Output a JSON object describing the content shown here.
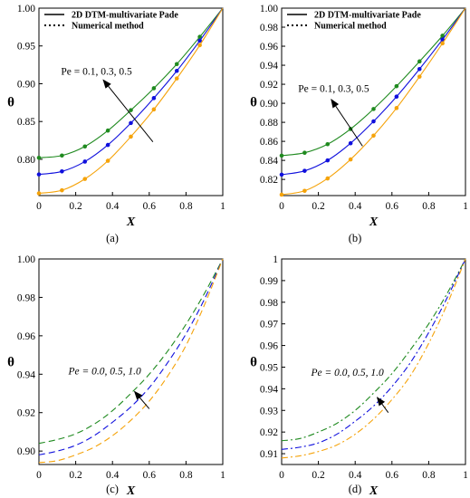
{
  "figure": {
    "legend": [
      "2D DTM-multivariate Pade",
      "Numerical method"
    ],
    "colors": {
      "green": "#1f8a1f",
      "blue": "#1010dd",
      "orange": "#f5a30a"
    }
  },
  "chart_data": [
    {
      "type": "line",
      "caption": "(a)",
      "xlabel": "X",
      "ylabel": "θ",
      "xlim": [
        0,
        1
      ],
      "ylim": [
        0.752,
        1.0
      ],
      "xticks": [
        "0",
        "0.2",
        "0.4",
        "0.6",
        "0.8",
        "1"
      ],
      "yticks": [
        {
          "v": 0.8,
          "label": "0.80"
        },
        {
          "v": 0.85,
          "label": "0.85"
        },
        {
          "v": 0.9,
          "label": "0.90"
        },
        {
          "v": 0.95,
          "label": "0.95"
        },
        {
          "v": 1.0,
          "label": "1.00"
        }
      ],
      "line_style": "solid-with-markers",
      "legend": true,
      "annotation": "Pe = 0.1, 0.3, 0.5",
      "annotation_italic": false,
      "arrow": {
        "from": [
          0.62,
          0.823
        ],
        "to": [
          0.35,
          0.905
        ]
      },
      "label_pos": [
        0.12,
        0.912
      ],
      "series": [
        {
          "color": "green",
          "x": [
            0,
            0.125,
            0.25,
            0.375,
            0.5,
            0.625,
            0.75,
            0.875,
            1
          ],
          "y": [
            0.802,
            0.805,
            0.817,
            0.838,
            0.865,
            0.894,
            0.926,
            0.962,
            1.0
          ]
        },
        {
          "color": "blue",
          "x": [
            0,
            0.125,
            0.25,
            0.375,
            0.5,
            0.625,
            0.75,
            0.875,
            1
          ],
          "y": [
            0.78,
            0.784,
            0.797,
            0.819,
            0.848,
            0.881,
            0.917,
            0.957,
            1.0
          ]
        },
        {
          "color": "orange",
          "x": [
            0,
            0.125,
            0.25,
            0.375,
            0.5,
            0.625,
            0.75,
            0.875,
            1
          ],
          "y": [
            0.755,
            0.759,
            0.774,
            0.798,
            0.83,
            0.866,
            0.907,
            0.951,
            1.0
          ]
        }
      ]
    },
    {
      "type": "line",
      "caption": "(b)",
      "xlabel": "X",
      "ylabel": "θ",
      "xlim": [
        0,
        1
      ],
      "ylim": [
        0.803,
        1.0
      ],
      "xticks": [
        "0",
        "0.2",
        "0.4",
        "0.6",
        "0.8",
        "1"
      ],
      "yticks": [
        {
          "v": 0.82,
          "label": "0.82"
        },
        {
          "v": 0.84,
          "label": "0.84"
        },
        {
          "v": 0.86,
          "label": "0.86"
        },
        {
          "v": 0.88,
          "label": "0.88"
        },
        {
          "v": 0.9,
          "label": "0.90"
        },
        {
          "v": 0.92,
          "label": "0.92"
        },
        {
          "v": 0.94,
          "label": "0.94"
        },
        {
          "v": 0.96,
          "label": "0.96"
        },
        {
          "v": 0.98,
          "label": "0.98"
        },
        {
          "v": 1.0,
          "label": "1.00"
        }
      ],
      "line_style": "solid-with-markers",
      "legend": true,
      "annotation": "Pe = 0.1, 0.3, 0.5",
      "annotation_italic": false,
      "arrow": {
        "from": [
          0.44,
          0.855
        ],
        "to": [
          0.27,
          0.904
        ]
      },
      "label_pos": [
        0.09,
        0.912
      ],
      "series": [
        {
          "color": "green",
          "x": [
            0,
            0.125,
            0.25,
            0.375,
            0.5,
            0.625,
            0.75,
            0.875,
            1
          ],
          "y": [
            0.845,
            0.848,
            0.857,
            0.873,
            0.894,
            0.918,
            0.944,
            0.971,
            1.0
          ]
        },
        {
          "color": "blue",
          "x": [
            0,
            0.125,
            0.25,
            0.375,
            0.5,
            0.625,
            0.75,
            0.875,
            1
          ],
          "y": [
            0.825,
            0.829,
            0.84,
            0.858,
            0.881,
            0.907,
            0.936,
            0.967,
            1.0
          ]
        },
        {
          "color": "orange",
          "x": [
            0,
            0.125,
            0.25,
            0.375,
            0.5,
            0.625,
            0.75,
            0.875,
            1
          ],
          "y": [
            0.804,
            0.808,
            0.821,
            0.841,
            0.866,
            0.895,
            0.928,
            0.963,
            1.0
          ]
        }
      ]
    },
    {
      "type": "line",
      "caption": "(c)",
      "xlabel": "X",
      "ylabel": "θ",
      "xlim": [
        0,
        1
      ],
      "ylim": [
        0.893,
        1.0
      ],
      "xticks": [
        "0",
        "0.2",
        "0.4",
        "0.6",
        "0.8",
        "1"
      ],
      "yticks": [
        {
          "v": 0.9,
          "label": "0.90"
        },
        {
          "v": 0.92,
          "label": "0.92"
        },
        {
          "v": 0.94,
          "label": "0.94"
        },
        {
          "v": 0.96,
          "label": "0.96"
        },
        {
          "v": 0.98,
          "label": "0.98"
        },
        {
          "v": 1.0,
          "label": "1.00"
        }
      ],
      "line_style": "dashed",
      "legend": false,
      "annotation": "Pe = 0.0, 0.5, 1.0",
      "annotation_italic": true,
      "arrow": {
        "from": [
          0.6,
          0.922
        ],
        "to": [
          0.52,
          0.931
        ]
      },
      "label_pos": [
        0.16,
        0.94
      ],
      "series": [
        {
          "color": "green",
          "x": [
            0,
            0.1,
            0.2,
            0.3,
            0.4,
            0.5,
            0.6,
            0.7,
            0.8,
            0.9,
            1
          ],
          "y": [
            0.904,
            0.906,
            0.909,
            0.914,
            0.921,
            0.93,
            0.94,
            0.952,
            0.966,
            0.982,
            1.0
          ]
        },
        {
          "color": "blue",
          "x": [
            0,
            0.1,
            0.2,
            0.3,
            0.4,
            0.5,
            0.6,
            0.7,
            0.8,
            0.9,
            1
          ],
          "y": [
            0.898,
            0.9,
            0.903,
            0.908,
            0.915,
            0.923,
            0.933,
            0.946,
            0.961,
            0.979,
            1.0
          ]
        },
        {
          "color": "orange",
          "x": [
            0,
            0.1,
            0.2,
            0.3,
            0.4,
            0.5,
            0.6,
            0.7,
            0.8,
            0.9,
            1
          ],
          "y": [
            0.894,
            0.895,
            0.898,
            0.902,
            0.908,
            0.916,
            0.926,
            0.939,
            0.955,
            0.976,
            1.0
          ]
        }
      ]
    },
    {
      "type": "line",
      "caption": "(d)",
      "xlabel": "X",
      "ylabel": "θ",
      "xlim": [
        0,
        1
      ],
      "ylim": [
        0.905,
        1.0
      ],
      "xticks": [
        "0",
        "0.2",
        "0.4",
        "0.6",
        "0.8",
        "1"
      ],
      "yticks": [
        {
          "v": 0.91,
          "label": "0.91"
        },
        {
          "v": 0.92,
          "label": "0.92"
        },
        {
          "v": 0.93,
          "label": "0.93"
        },
        {
          "v": 0.94,
          "label": "0.94"
        },
        {
          "v": 0.95,
          "label": "0.95"
        },
        {
          "v": 0.96,
          "label": "0.96"
        },
        {
          "v": 0.97,
          "label": "0.97"
        },
        {
          "v": 0.98,
          "label": "0.98"
        },
        {
          "v": 0.99,
          "label": "0.99"
        },
        {
          "v": 1.0,
          "label": "1"
        }
      ],
      "line_style": "dashdot",
      "legend": false,
      "annotation": "Pe = 0.0, 0.5, 1.0",
      "annotation_italic": true,
      "arrow": {
        "from": [
          0.58,
          0.929
        ],
        "to": [
          0.52,
          0.936
        ]
      },
      "label_pos": [
        0.16,
        0.946
      ],
      "series": [
        {
          "color": "green",
          "x": [
            0,
            0.1,
            0.2,
            0.3,
            0.4,
            0.5,
            0.6,
            0.7,
            0.8,
            0.9,
            1
          ],
          "y": [
            0.916,
            0.917,
            0.92,
            0.924,
            0.93,
            0.938,
            0.947,
            0.958,
            0.97,
            0.984,
            1.0
          ]
        },
        {
          "color": "blue",
          "x": [
            0,
            0.1,
            0.2,
            0.3,
            0.4,
            0.5,
            0.6,
            0.7,
            0.8,
            0.9,
            1
          ],
          "y": [
            0.912,
            0.913,
            0.915,
            0.919,
            0.925,
            0.932,
            0.941,
            0.952,
            0.966,
            0.982,
            1.0
          ]
        },
        {
          "color": "orange",
          "x": [
            0,
            0.1,
            0.2,
            0.3,
            0.4,
            0.5,
            0.6,
            0.7,
            0.8,
            0.9,
            1
          ],
          "y": [
            0.908,
            0.909,
            0.911,
            0.914,
            0.919,
            0.926,
            0.935,
            0.946,
            0.961,
            0.979,
            1.0
          ]
        }
      ]
    }
  ]
}
